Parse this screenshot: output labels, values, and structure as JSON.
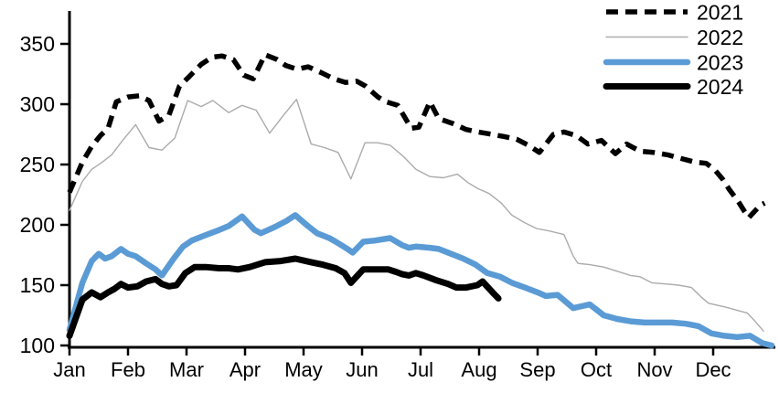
{
  "chart_data": {
    "type": "line",
    "title": "",
    "xlabel": "",
    "ylabel": "",
    "grid": false,
    "x_axis": {
      "unit": "month",
      "tick_labels": [
        "Jan",
        "Feb",
        "Mar",
        "Apr",
        "May",
        "Jun",
        "Jul",
        "Aug",
        "Sep",
        "Oct",
        "Nov",
        "Dec"
      ]
    },
    "y_axis": {
      "ticks": [
        100,
        150,
        200,
        250,
        300,
        350
      ],
      "range": [
        100,
        360
      ]
    },
    "legend": {
      "position": "top-right",
      "entries": [
        "2021",
        "2022",
        "2023",
        "2024"
      ]
    },
    "axis_color": "#000000",
    "series": [
      {
        "name": "2021",
        "color": "#000000",
        "style": "dashed",
        "width": 5.5,
        "points": [
          [
            0.0,
            227
          ],
          [
            0.22,
            252
          ],
          [
            0.38,
            265
          ],
          [
            0.53,
            274
          ],
          [
            0.66,
            280
          ],
          [
            0.8,
            302
          ],
          [
            1.0,
            306
          ],
          [
            1.19,
            307
          ],
          [
            1.36,
            303
          ],
          [
            1.53,
            286
          ],
          [
            1.7,
            291
          ],
          [
            1.88,
            315
          ],
          [
            2.05,
            323
          ],
          [
            2.25,
            333
          ],
          [
            2.44,
            339
          ],
          [
            2.61,
            340
          ],
          [
            2.8,
            337
          ],
          [
            2.98,
            324
          ],
          [
            3.14,
            321
          ],
          [
            3.34,
            341
          ],
          [
            3.55,
            337
          ],
          [
            3.7,
            332
          ],
          [
            3.89,
            329
          ],
          [
            4.08,
            331
          ],
          [
            4.31,
            326
          ],
          [
            4.52,
            321
          ],
          [
            4.72,
            318
          ],
          [
            4.91,
            319
          ],
          [
            5.06,
            315
          ],
          [
            5.27,
            306
          ],
          [
            5.41,
            302
          ],
          [
            5.61,
            299
          ],
          [
            5.84,
            280
          ],
          [
            5.97,
            281
          ],
          [
            6.16,
            302
          ],
          [
            6.31,
            288
          ],
          [
            6.55,
            284
          ],
          [
            6.78,
            279
          ],
          [
            6.98,
            277
          ],
          [
            7.22,
            275
          ],
          [
            7.44,
            273
          ],
          [
            7.64,
            271
          ],
          [
            7.84,
            266
          ],
          [
            8.03,
            260
          ],
          [
            8.27,
            275
          ],
          [
            8.45,
            277
          ],
          [
            8.66,
            274
          ],
          [
            8.86,
            267
          ],
          [
            9.09,
            270
          ],
          [
            9.33,
            259
          ],
          [
            9.52,
            267
          ],
          [
            9.75,
            261
          ],
          [
            9.98,
            260
          ],
          [
            10.22,
            258
          ],
          [
            10.45,
            255
          ],
          [
            10.69,
            252
          ],
          [
            10.88,
            251
          ],
          [
            11.02,
            246
          ],
          [
            11.16,
            238
          ],
          [
            11.28,
            229
          ],
          [
            11.42,
            220
          ],
          [
            11.55,
            210
          ],
          [
            11.61,
            206
          ],
          [
            11.8,
            216
          ],
          [
            11.88,
            218
          ]
        ]
      },
      {
        "name": "2022",
        "color": "#ABABAB",
        "style": "solid",
        "width": 1.4,
        "points": [
          [
            0.0,
            212
          ],
          [
            0.22,
            236
          ],
          [
            0.38,
            246
          ],
          [
            0.56,
            252
          ],
          [
            0.72,
            258
          ],
          [
            0.91,
            270
          ],
          [
            1.13,
            283
          ],
          [
            1.36,
            264
          ],
          [
            1.58,
            262
          ],
          [
            1.8,
            272
          ],
          [
            2.02,
            303
          ],
          [
            2.25,
            298
          ],
          [
            2.45,
            303
          ],
          [
            2.72,
            293
          ],
          [
            2.95,
            299
          ],
          [
            3.19,
            295
          ],
          [
            3.42,
            276
          ],
          [
            3.66,
            291
          ],
          [
            3.88,
            304
          ],
          [
            4.13,
            267
          ],
          [
            4.36,
            264
          ],
          [
            4.59,
            260
          ],
          [
            4.81,
            238
          ],
          [
            5.05,
            268
          ],
          [
            5.27,
            268
          ],
          [
            5.48,
            266
          ],
          [
            5.7,
            257
          ],
          [
            5.92,
            246
          ],
          [
            6.16,
            240
          ],
          [
            6.39,
            239
          ],
          [
            6.63,
            242
          ],
          [
            6.81,
            235
          ],
          [
            6.98,
            230
          ],
          [
            7.17,
            226
          ],
          [
            7.38,
            218
          ],
          [
            7.56,
            208
          ],
          [
            7.77,
            202
          ],
          [
            7.98,
            197
          ],
          [
            8.19,
            195
          ],
          [
            8.45,
            192
          ],
          [
            8.61,
            174
          ],
          [
            8.69,
            168
          ],
          [
            8.89,
            167
          ],
          [
            9.13,
            165
          ],
          [
            9.33,
            162
          ],
          [
            9.59,
            158
          ],
          [
            9.75,
            157
          ],
          [
            9.95,
            152
          ],
          [
            10.19,
            151
          ],
          [
            10.41,
            150
          ],
          [
            10.63,
            148
          ],
          [
            10.8,
            140
          ],
          [
            10.92,
            135
          ],
          [
            11.2,
            132
          ],
          [
            11.42,
            129
          ],
          [
            11.58,
            127
          ],
          [
            11.7,
            121
          ],
          [
            11.86,
            112
          ]
        ]
      },
      {
        "name": "2023",
        "color": "#5B9BD5",
        "style": "solid",
        "width": 6.5,
        "points": [
          [
            0.0,
            113
          ],
          [
            0.22,
            152
          ],
          [
            0.38,
            170
          ],
          [
            0.5,
            176
          ],
          [
            0.61,
            172
          ],
          [
            0.72,
            174
          ],
          [
            0.88,
            180
          ],
          [
            1.0,
            176
          ],
          [
            1.13,
            174
          ],
          [
            1.31,
            168
          ],
          [
            1.47,
            163
          ],
          [
            1.58,
            158
          ],
          [
            1.78,
            172
          ],
          [
            1.94,
            182
          ],
          [
            2.09,
            187
          ],
          [
            2.3,
            191
          ],
          [
            2.52,
            195
          ],
          [
            2.72,
            199
          ],
          [
            2.95,
            207
          ],
          [
            3.16,
            196
          ],
          [
            3.27,
            193
          ],
          [
            3.5,
            198
          ],
          [
            3.7,
            203
          ],
          [
            3.86,
            208
          ],
          [
            4.05,
            200
          ],
          [
            4.23,
            193
          ],
          [
            4.44,
            189
          ],
          [
            4.55,
            186
          ],
          [
            4.75,
            180
          ],
          [
            4.84,
            177
          ],
          [
            5.02,
            186
          ],
          [
            5.22,
            187
          ],
          [
            5.48,
            189
          ],
          [
            5.69,
            183
          ],
          [
            5.8,
            181
          ],
          [
            5.92,
            182
          ],
          [
            6.16,
            181
          ],
          [
            6.31,
            180
          ],
          [
            6.52,
            176
          ],
          [
            6.73,
            172
          ],
          [
            6.94,
            167
          ],
          [
            7.14,
            160
          ],
          [
            7.36,
            157
          ],
          [
            7.56,
            152
          ],
          [
            7.78,
            148
          ],
          [
            8.0,
            144
          ],
          [
            8.14,
            141
          ],
          [
            8.34,
            142
          ],
          [
            8.61,
            131
          ],
          [
            8.89,
            134
          ],
          [
            9.13,
            125
          ],
          [
            9.36,
            122
          ],
          [
            9.59,
            120
          ],
          [
            9.83,
            119
          ],
          [
            10.06,
            119
          ],
          [
            10.3,
            119
          ],
          [
            10.53,
            118
          ],
          [
            10.75,
            116
          ],
          [
            10.97,
            110
          ],
          [
            11.19,
            108
          ],
          [
            11.41,
            107
          ],
          [
            11.63,
            108
          ],
          [
            11.84,
            102
          ],
          [
            12.0,
            100
          ]
        ]
      },
      {
        "name": "2024",
        "color": "#000000",
        "style": "solid",
        "width": 7,
        "points": [
          [
            0.0,
            108
          ],
          [
            0.22,
            138
          ],
          [
            0.38,
            144
          ],
          [
            0.53,
            140
          ],
          [
            0.66,
            144
          ],
          [
            0.77,
            147
          ],
          [
            0.88,
            151
          ],
          [
            1.0,
            148
          ],
          [
            1.16,
            149
          ],
          [
            1.31,
            153
          ],
          [
            1.47,
            155
          ],
          [
            1.58,
            151
          ],
          [
            1.7,
            149
          ],
          [
            1.83,
            150
          ],
          [
            1.98,
            160
          ],
          [
            2.14,
            165
          ],
          [
            2.33,
            165
          ],
          [
            2.56,
            164
          ],
          [
            2.72,
            164
          ],
          [
            2.88,
            163
          ],
          [
            3.08,
            165
          ],
          [
            3.34,
            169
          ],
          [
            3.61,
            170
          ],
          [
            3.86,
            172
          ],
          [
            4.13,
            169
          ],
          [
            4.33,
            167
          ],
          [
            4.55,
            164
          ],
          [
            4.7,
            160
          ],
          [
            4.81,
            152
          ],
          [
            5.02,
            163
          ],
          [
            5.22,
            163
          ],
          [
            5.45,
            163
          ],
          [
            5.58,
            161
          ],
          [
            5.69,
            159
          ],
          [
            5.8,
            158
          ],
          [
            5.92,
            160
          ],
          [
            6.05,
            158
          ],
          [
            6.27,
            154
          ],
          [
            6.47,
            151
          ],
          [
            6.61,
            148
          ],
          [
            6.78,
            148
          ],
          [
            6.97,
            150
          ],
          [
            7.06,
            153
          ],
          [
            7.25,
            143
          ],
          [
            7.33,
            139
          ]
        ]
      }
    ]
  }
}
